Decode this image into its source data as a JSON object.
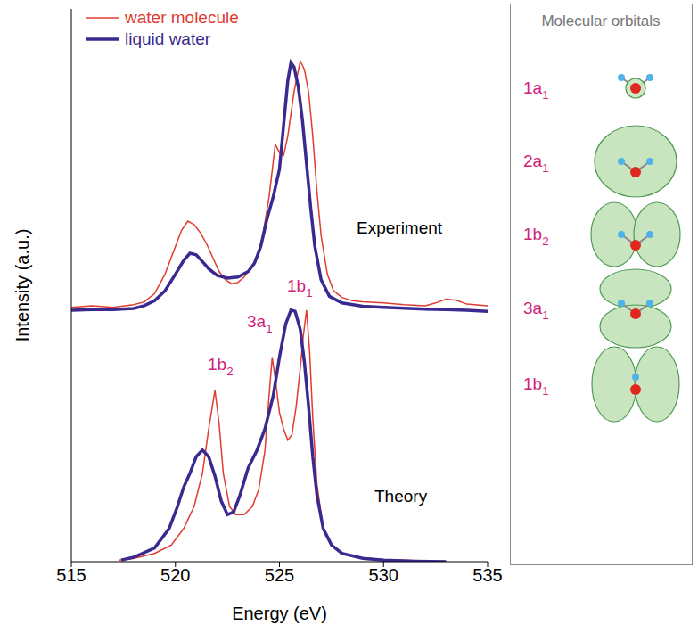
{
  "chart_data": {
    "type": "line",
    "xlabel": "Energy (eV)",
    "ylabel": "Intensity (a.u.)",
    "xlim": [
      515,
      535
    ],
    "xticks": [
      515,
      520,
      525,
      530,
      535
    ],
    "ylim": [
      0,
      100
    ],
    "tick_labels": "x",
    "legend": "upper left",
    "annotations": [
      "Experiment",
      "Theory",
      "1b2",
      "3a1",
      "1b1"
    ],
    "series": [
      {
        "name": "water molecule",
        "color": "#e03c31",
        "x": [
          515,
          516,
          517,
          518,
          518.5,
          519,
          519.5,
          520,
          520.3,
          520.6,
          520.9,
          521.2,
          521.5,
          521.8,
          522.1,
          522.4,
          522.7,
          523.0,
          523.3,
          523.6,
          523.9,
          524.2,
          524.5,
          524.8,
          525.0,
          525.2,
          525.4,
          525.7,
          526.0,
          526.2,
          526.4,
          526.6,
          526.8,
          527.0,
          527.3,
          527.6,
          528,
          528.5,
          529,
          530,
          531,
          532,
          532.5,
          533,
          533.5,
          534,
          535
        ],
        "values": [
          46,
          46.3,
          46,
          46.5,
          47,
          48.5,
          52,
          57,
          60,
          61.6,
          61,
          59.5,
          57.5,
          55,
          52.5,
          51,
          50.3,
          50.5,
          51.5,
          53,
          55,
          59,
          66,
          75.5,
          74,
          73.5,
          77,
          85,
          90.6,
          89,
          85,
          77,
          67,
          59,
          52,
          49,
          47.8,
          47.2,
          47,
          46.8,
          46.5,
          46.3,
          46.8,
          47.5,
          47.3,
          46.6,
          46.3
        ]
      },
      {
        "name": "liquid water",
        "color": "#3a2a8f",
        "x": [
          515,
          516,
          517,
          518,
          518.5,
          519,
          519.5,
          520,
          520.4,
          520.7,
          521.0,
          521.3,
          521.6,
          522.0,
          522.5,
          523.0,
          523.5,
          523.8,
          524.1,
          524.4,
          524.7,
          525.0,
          525.2,
          525.4,
          525.55,
          525.7,
          525.9,
          526.1,
          526.3,
          526.5,
          526.7,
          527.0,
          527.4,
          528,
          529,
          530,
          532,
          534,
          535
        ],
        "values": [
          45.5,
          45.6,
          45.6,
          45.8,
          46.3,
          47.2,
          49,
          52,
          54.5,
          55.8,
          55.5,
          54.3,
          53,
          51.8,
          51.3,
          51.5,
          52.5,
          54,
          57,
          62,
          66,
          71,
          79,
          87,
          90.3,
          89.5,
          86,
          80,
          72,
          64,
          57,
          51,
          48,
          46.8,
          46.2,
          46,
          45.7,
          45.5,
          45.3
        ]
      },
      {
        "name": "water molecule",
        "color": "#e03c31",
        "x": [
          517.3,
          518,
          519,
          519.8,
          520.4,
          520.9,
          521.3,
          521.6,
          521.9,
          522.1,
          522.3,
          522.6,
          522.9,
          523.3,
          523.7,
          524.0,
          524.3,
          524.5,
          524.65,
          524.8,
          525.0,
          525.2,
          525.4,
          525.6,
          525.8,
          526.0,
          526.15,
          526.3,
          526.45,
          526.6,
          526.8,
          527.1,
          527.5,
          528,
          529,
          530,
          531.5,
          533
        ],
        "values": [
          0.3,
          0.6,
          1.5,
          3,
          6,
          10,
          16,
          24,
          31,
          25,
          16,
          10,
          8.5,
          8.5,
          10,
          13,
          20,
          30,
          37,
          33,
          27,
          24,
          22,
          23,
          28,
          35,
          41,
          45.5,
          38,
          26,
          14,
          6,
          3,
          1.5,
          0.7,
          0.4,
          0.2,
          0.1
        ]
      },
      {
        "name": "liquid water",
        "color": "#3a2a8f",
        "x": [
          517.4,
          518,
          519,
          519.7,
          520.1,
          520.4,
          520.7,
          521.0,
          521.3,
          521.6,
          521.9,
          522.2,
          522.5,
          522.8,
          523.1,
          523.5,
          523.9,
          524.3,
          524.7,
          525.0,
          525.3,
          525.55,
          525.75,
          526.0,
          526.2,
          526.4,
          526.6,
          526.8,
          527.1,
          527.5,
          528,
          529,
          530,
          531.5,
          533
        ],
        "values": [
          0.3,
          0.8,
          2.5,
          6,
          10,
          13.5,
          16,
          19,
          20.2,
          19,
          15.5,
          11,
          8.5,
          9,
          12,
          17,
          20,
          24,
          30,
          37,
          43,
          45.5,
          45.3,
          42,
          36,
          28,
          19,
          12,
          6,
          3,
          1.5,
          0.6,
          0.3,
          0.1,
          0
        ]
      }
    ]
  },
  "orbitals": {
    "title": "Molecular orbitals",
    "labels": [
      "1a1",
      "2a1",
      "1b2",
      "3a1",
      "1b1"
    ]
  }
}
